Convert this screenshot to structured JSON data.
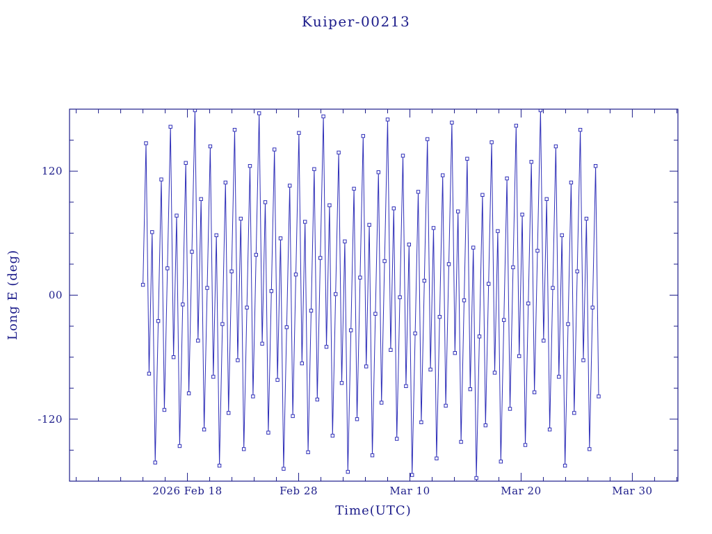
{
  "page": {
    "background": "#ffffff"
  },
  "chart_data": {
    "type": "line",
    "title": "Kuiper-00213",
    "xlabel": "Time(UTC)",
    "ylabel": "Long E (deg)",
    "x_unit": "day of year 2026",
    "xlim": [
      38.4,
      93.1
    ],
    "ylim": [
      -180,
      180
    ],
    "grid": false,
    "legend": "none",
    "marker": "open-square",
    "line_color": "#2e2eb8",
    "frame_color": "#1c1c8a",
    "text_color": "#1c1c8a",
    "x_ticks": [
      {
        "value": 49,
        "label": "2026 Feb 18"
      },
      {
        "value": 59,
        "label": "Feb 28"
      },
      {
        "value": 69,
        "label": "Mar 10"
      },
      {
        "value": 79,
        "label": "Mar 20"
      },
      {
        "value": 89,
        "label": "Mar 30"
      }
    ],
    "x_minor_step": 2,
    "y_ticks": [
      {
        "value": 120,
        "label": "120"
      },
      {
        "value": 0,
        "label": "00"
      },
      {
        "value": -120,
        "label": "-120"
      }
    ],
    "y_minor_step": 30,
    "series": [
      {
        "name": "Long E",
        "x_start": 45.0,
        "x_step": 0.275,
        "values": [
          10,
          147,
          -76,
          61,
          -162,
          -25,
          112,
          -111,
          26,
          163,
          -60,
          77,
          -146,
          -9,
          128,
          -95,
          42,
          179,
          -44,
          93,
          -130,
          7,
          144,
          -79,
          58,
          -165,
          -28,
          109,
          -114,
          23,
          160,
          -63,
          74,
          -149,
          -12,
          125,
          -98,
          39,
          176,
          -47,
          90,
          -133,
          4,
          141,
          -82,
          55,
          -168,
          -31,
          106,
          -117,
          20,
          157,
          -66,
          71,
          -152,
          -15,
          122,
          -101,
          36,
          173,
          -50,
          87,
          -136,
          1,
          138,
          -85,
          52,
          -171,
          -34,
          103,
          -120,
          17,
          154,
          -69,
          68,
          -155,
          -18,
          119,
          -104,
          33,
          170,
          -53,
          84,
          -139,
          -2,
          135,
          -88,
          49,
          -174,
          -37,
          100,
          -123,
          14,
          151,
          -72,
          65,
          -158,
          -21,
          116,
          -107,
          30,
          167,
          -56,
          81,
          -142,
          -5,
          132,
          -91,
          46,
          -177,
          -40,
          97,
          -126,
          11,
          148,
          -75,
          62,
          -161,
          -24,
          113,
          -110,
          27,
          164,
          -59,
          78,
          -145,
          -8,
          129,
          -94,
          43,
          179,
          -44,
          93,
          -130,
          7,
          144,
          -79,
          58,
          -165,
          -28,
          109,
          -114,
          23,
          160,
          -63,
          74,
          -149,
          -12,
          125,
          -98
        ]
      }
    ]
  }
}
